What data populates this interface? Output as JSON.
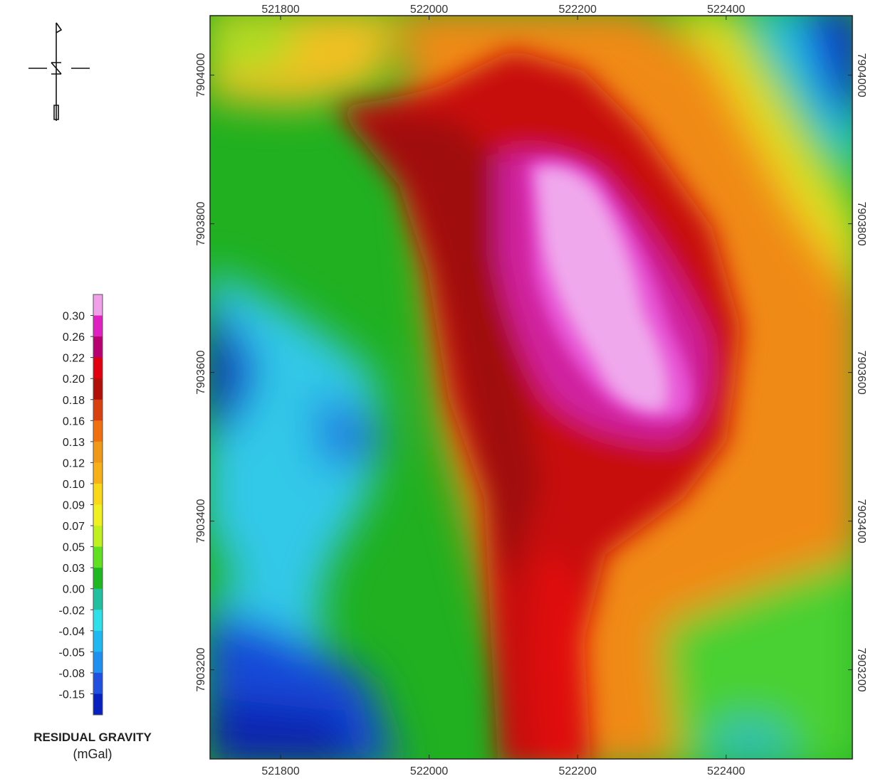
{
  "legend": {
    "title": "RESIDUAL GRAVITY",
    "unit": "(mGal)",
    "values": [
      "0.30",
      "0.26",
      "0.22",
      "0.20",
      "0.18",
      "0.16",
      "0.13",
      "0.12",
      "0.10",
      "0.09",
      "0.07",
      "0.05",
      "0.03",
      "0.00",
      "-0.02",
      "-0.04",
      "-0.05",
      "-0.08",
      "-0.15"
    ],
    "colors": [
      "#f0a0e8",
      "#e020c0",
      "#b80070",
      "#e00010",
      "#b01008",
      "#d84010",
      "#f07010",
      "#f09818",
      "#f8b018",
      "#f8d818",
      "#f0f020",
      "#c0f020",
      "#60e020",
      "#20b820",
      "#20c0a0",
      "#30e0e8",
      "#20b8f0",
      "#2090f0",
      "#2050e0",
      "#0820c0"
    ]
  },
  "map": {
    "x_ticks": [
      "521800",
      "522000",
      "522200",
      "522400"
    ],
    "y_ticks": [
      "7904000",
      "7903800",
      "7903600",
      "7903400",
      "7903200"
    ],
    "x_range": [
      521705,
      522570
    ],
    "y_range": [
      7903080,
      7904080
    ],
    "north_arrow": "north-arrow-icon"
  }
}
